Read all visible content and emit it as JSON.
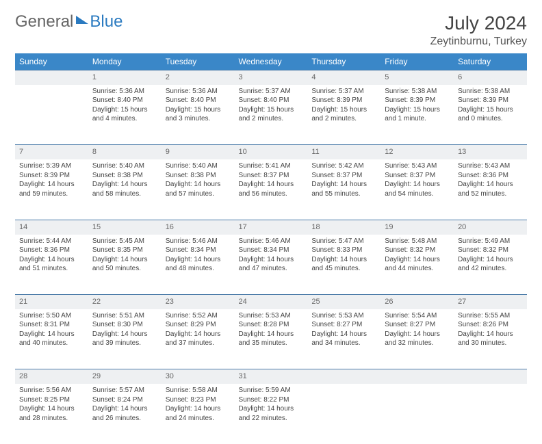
{
  "brand": {
    "part1": "General",
    "part2": "Blue"
  },
  "title": "July 2024",
  "location": "Zeytinburnu, Turkey",
  "colors": {
    "header_bg": "#3a87c8",
    "daynum_bg": "#eef0f2",
    "row_border": "#4a7ba8",
    "text": "#444444",
    "brand_blue": "#2a7ac0"
  },
  "day_headers": [
    "Sunday",
    "Monday",
    "Tuesday",
    "Wednesday",
    "Thursday",
    "Friday",
    "Saturday"
  ],
  "weeks": [
    [
      null,
      {
        "n": "1",
        "sr": "5:36 AM",
        "ss": "8:40 PM",
        "dl": "15 hours and 4 minutes."
      },
      {
        "n": "2",
        "sr": "5:36 AM",
        "ss": "8:40 PM",
        "dl": "15 hours and 3 minutes."
      },
      {
        "n": "3",
        "sr": "5:37 AM",
        "ss": "8:40 PM",
        "dl": "15 hours and 2 minutes."
      },
      {
        "n": "4",
        "sr": "5:37 AM",
        "ss": "8:39 PM",
        "dl": "15 hours and 2 minutes."
      },
      {
        "n": "5",
        "sr": "5:38 AM",
        "ss": "8:39 PM",
        "dl": "15 hours and 1 minute."
      },
      {
        "n": "6",
        "sr": "5:38 AM",
        "ss": "8:39 PM",
        "dl": "15 hours and 0 minutes."
      }
    ],
    [
      {
        "n": "7",
        "sr": "5:39 AM",
        "ss": "8:39 PM",
        "dl": "14 hours and 59 minutes."
      },
      {
        "n": "8",
        "sr": "5:40 AM",
        "ss": "8:38 PM",
        "dl": "14 hours and 58 minutes."
      },
      {
        "n": "9",
        "sr": "5:40 AM",
        "ss": "8:38 PM",
        "dl": "14 hours and 57 minutes."
      },
      {
        "n": "10",
        "sr": "5:41 AM",
        "ss": "8:37 PM",
        "dl": "14 hours and 56 minutes."
      },
      {
        "n": "11",
        "sr": "5:42 AM",
        "ss": "8:37 PM",
        "dl": "14 hours and 55 minutes."
      },
      {
        "n": "12",
        "sr": "5:43 AM",
        "ss": "8:37 PM",
        "dl": "14 hours and 54 minutes."
      },
      {
        "n": "13",
        "sr": "5:43 AM",
        "ss": "8:36 PM",
        "dl": "14 hours and 52 minutes."
      }
    ],
    [
      {
        "n": "14",
        "sr": "5:44 AM",
        "ss": "8:36 PM",
        "dl": "14 hours and 51 minutes."
      },
      {
        "n": "15",
        "sr": "5:45 AM",
        "ss": "8:35 PM",
        "dl": "14 hours and 50 minutes."
      },
      {
        "n": "16",
        "sr": "5:46 AM",
        "ss": "8:34 PM",
        "dl": "14 hours and 48 minutes."
      },
      {
        "n": "17",
        "sr": "5:46 AM",
        "ss": "8:34 PM",
        "dl": "14 hours and 47 minutes."
      },
      {
        "n": "18",
        "sr": "5:47 AM",
        "ss": "8:33 PM",
        "dl": "14 hours and 45 minutes."
      },
      {
        "n": "19",
        "sr": "5:48 AM",
        "ss": "8:32 PM",
        "dl": "14 hours and 44 minutes."
      },
      {
        "n": "20",
        "sr": "5:49 AM",
        "ss": "8:32 PM",
        "dl": "14 hours and 42 minutes."
      }
    ],
    [
      {
        "n": "21",
        "sr": "5:50 AM",
        "ss": "8:31 PM",
        "dl": "14 hours and 40 minutes."
      },
      {
        "n": "22",
        "sr": "5:51 AM",
        "ss": "8:30 PM",
        "dl": "14 hours and 39 minutes."
      },
      {
        "n": "23",
        "sr": "5:52 AM",
        "ss": "8:29 PM",
        "dl": "14 hours and 37 minutes."
      },
      {
        "n": "24",
        "sr": "5:53 AM",
        "ss": "8:28 PM",
        "dl": "14 hours and 35 minutes."
      },
      {
        "n": "25",
        "sr": "5:53 AM",
        "ss": "8:27 PM",
        "dl": "14 hours and 34 minutes."
      },
      {
        "n": "26",
        "sr": "5:54 AM",
        "ss": "8:27 PM",
        "dl": "14 hours and 32 minutes."
      },
      {
        "n": "27",
        "sr": "5:55 AM",
        "ss": "8:26 PM",
        "dl": "14 hours and 30 minutes."
      }
    ],
    [
      {
        "n": "28",
        "sr": "5:56 AM",
        "ss": "8:25 PM",
        "dl": "14 hours and 28 minutes."
      },
      {
        "n": "29",
        "sr": "5:57 AM",
        "ss": "8:24 PM",
        "dl": "14 hours and 26 minutes."
      },
      {
        "n": "30",
        "sr": "5:58 AM",
        "ss": "8:23 PM",
        "dl": "14 hours and 24 minutes."
      },
      {
        "n": "31",
        "sr": "5:59 AM",
        "ss": "8:22 PM",
        "dl": "14 hours and 22 minutes."
      },
      null,
      null,
      null
    ]
  ],
  "labels": {
    "sunrise": "Sunrise:",
    "sunset": "Sunset:",
    "daylight": "Daylight:"
  }
}
